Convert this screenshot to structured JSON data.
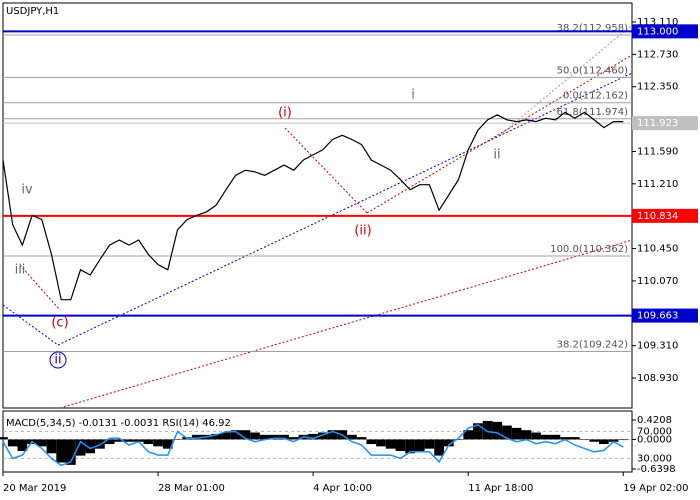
{
  "chart_data": [
    {
      "type": "line",
      "title": "USDJPY,H1",
      "categories": [
        "20 Mar 2019",
        null,
        null,
        null,
        null,
        null,
        null,
        null,
        null,
        null,
        null,
        null,
        null,
        null,
        null,
        null,
        "28 Mar 01:00",
        null,
        null,
        null,
        null,
        null,
        null,
        null,
        null,
        null,
        null,
        null,
        null,
        null,
        null,
        null,
        "4 Apr 10:00",
        null,
        null,
        null,
        null,
        null,
        null,
        null,
        null,
        null,
        null,
        null,
        null,
        null,
        null,
        null,
        "11 Apr 18:00",
        null,
        null,
        null,
        null,
        null,
        null,
        null,
        null,
        null,
        null,
        null,
        null,
        null,
        null,
        null,
        "19 Apr 02:00"
      ],
      "series": [
        {
          "color": "#000000",
          "values": [
            111.49,
            110.73,
            110.49,
            110.84,
            110.79,
            110.38,
            109.85,
            109.85,
            110.2,
            110.14,
            110.32,
            110.49,
            110.55,
            110.49,
            110.55,
            110.38,
            110.26,
            110.2,
            110.67,
            110.79,
            110.84,
            110.88,
            110.96,
            111.14,
            111.31,
            111.37,
            111.35,
            111.31,
            111.37,
            111.43,
            111.37,
            111.49,
            111.55,
            111.61,
            111.73,
            111.78,
            111.73,
            111.67,
            111.49,
            111.43,
            111.37,
            111.26,
            111.14,
            111.2,
            111.2,
            110.9,
            111.08,
            111.26,
            111.61,
            111.84,
            111.96,
            112.02,
            111.96,
            111.94,
            111.96,
            111.94,
            111.98,
            111.96,
            112.05,
            111.98,
            112.05,
            111.96,
            111.87,
            111.94,
            111.94
          ]
        }
      ],
      "ylim": [
        108.578,
        113.333
      ],
      "yticks": [
        {
          "value": 113.11,
          "label": "113.110"
        },
        {
          "value": 112.73,
          "label": "112.730"
        },
        {
          "value": 112.35,
          "label": "112.350"
        },
        {
          "value": 111.59,
          "label": "111.590"
        },
        {
          "value": 111.21,
          "label": "111.210"
        },
        {
          "value": 110.45,
          "label": "110.450"
        },
        {
          "value": 110.07,
          "label": "110.070"
        },
        {
          "value": 109.31,
          "label": "109.310"
        },
        {
          "value": 108.93,
          "label": "108.930"
        }
      ],
      "levels": [
        {
          "value": 113.0,
          "label": "113.000",
          "color": "#0000cc"
        },
        {
          "value": 111.923,
          "label": "111.923",
          "color": "#c0c0c0"
        },
        {
          "value": 110.834,
          "label": "110.834",
          "color": "#ff0000"
        },
        {
          "value": 109.663,
          "label": "109.663",
          "color": "#0000cc"
        }
      ],
      "fib_levels": [
        {
          "value": 112.958,
          "label": "38.2(112.958)"
        },
        {
          "value": 112.46,
          "label": "50.0(112.460)"
        },
        {
          "value": 112.162,
          "label": "0.0(112.162)"
        },
        {
          "value": 111.974,
          "label": "61.8(111.974)"
        },
        {
          "value": 110.362,
          "label": "100.0(110.362)"
        },
        {
          "value": 109.242,
          "label": "38.2(109.242)"
        }
      ],
      "annotations": [
        "i",
        "ii",
        "(i)",
        "(ii)",
        "iv",
        "iii",
        "(c)",
        "ii"
      ]
    },
    {
      "type": "indicator",
      "title": "MACD(5,34,5) -0.0131 -0.0031 RSI(14) 46.92",
      "series": [
        {
          "type": "bar",
          "color": "#000000",
          "values": [
            0.05,
            -0.15,
            -0.25,
            -0.1,
            -0.15,
            -0.3,
            -0.5,
            -0.55,
            -0.35,
            -0.3,
            -0.2,
            -0.1,
            -0.05,
            -0.05,
            -0.05,
            -0.1,
            -0.15,
            -0.2,
            0.0,
            0.05,
            0.1,
            0.1,
            0.12,
            0.15,
            0.2,
            0.2,
            0.15,
            0.1,
            0.1,
            0.1,
            0.05,
            0.1,
            0.12,
            0.15,
            0.2,
            0.2,
            0.1,
            0.05,
            -0.1,
            -0.15,
            -0.2,
            -0.25,
            -0.3,
            -0.25,
            -0.2,
            -0.35,
            -0.15,
            0.0,
            0.2,
            0.35,
            0.4,
            0.38,
            0.3,
            0.25,
            0.2,
            0.15,
            0.1,
            0.1,
            0.05,
            0.05,
            0.0,
            -0.05,
            -0.1,
            -0.05,
            -0.0131
          ]
        },
        {
          "type": "line",
          "axis": "y2",
          "color": "#1e90ff",
          "values": [
            55,
            30,
            35,
            55,
            45,
            30,
            20,
            25,
            55,
            45,
            50,
            60,
            60,
            50,
            55,
            40,
            35,
            35,
            70,
            60,
            60,
            62,
            65,
            70,
            70,
            60,
            55,
            58,
            60,
            60,
            55,
            62,
            60,
            65,
            70,
            65,
            55,
            50,
            35,
            35,
            35,
            30,
            40,
            40,
            40,
            25,
            50,
            60,
            75,
            80,
            70,
            68,
            60,
            55,
            58,
            52,
            55,
            52,
            58,
            50,
            45,
            40,
            42,
            55,
            46.92
          ]
        }
      ],
      "ylim": [
        -0.705,
        0.594
      ],
      "yticks": [
        0.4208,
        {
          "value": 0,
          "label": "0.0000"
        },
        -0.6398
      ],
      "y2lim": [
        10,
        99
      ],
      "y2ticks": [
        {
          "value": 70,
          "label": "70.000"
        },
        {
          "value": 30,
          "label": "30.000"
        }
      ]
    }
  ]
}
